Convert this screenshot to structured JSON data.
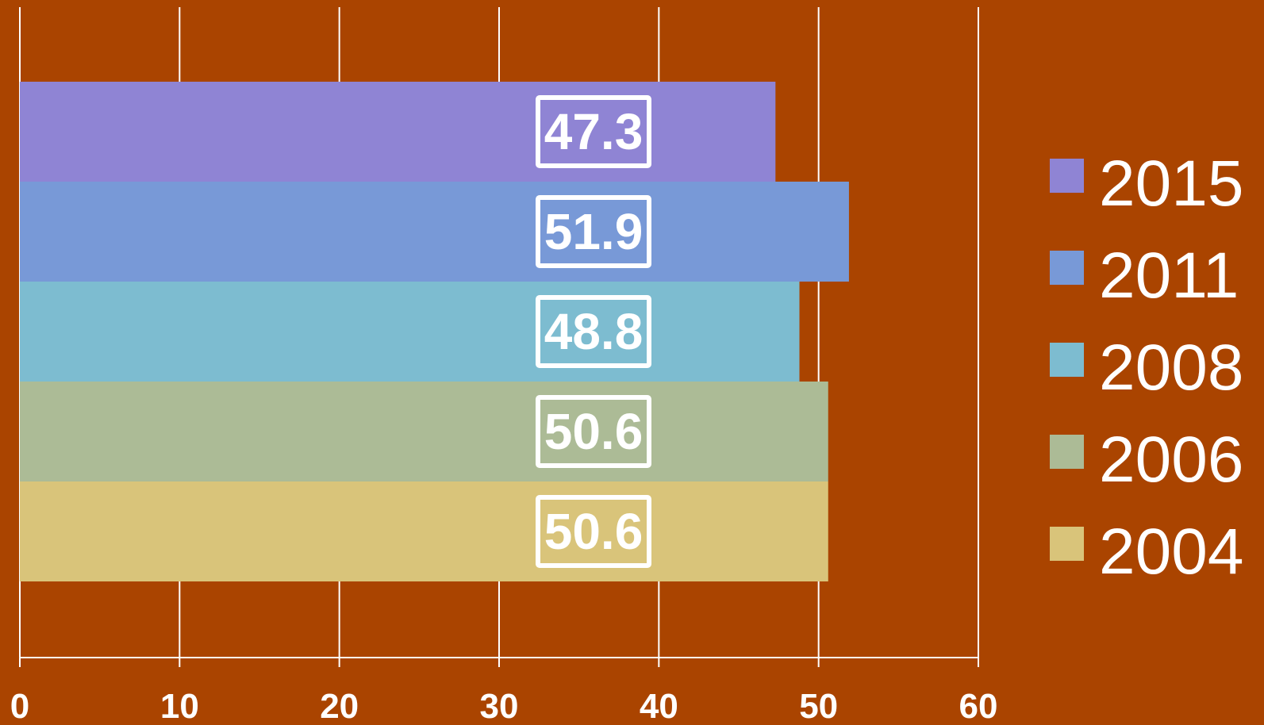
{
  "chart_data": {
    "type": "bar",
    "orientation": "horizontal",
    "grouping": "stacked-series-bands",
    "series": [
      {
        "name": "2015",
        "value": 47.3,
        "color": "#8f84d4"
      },
      {
        "name": "2011",
        "value": 51.9,
        "color": "#7899d7"
      },
      {
        "name": "2008",
        "value": 48.8,
        "color": "#7dbcd0"
      },
      {
        "name": "2006",
        "value": 50.6,
        "color": "#acbb96"
      },
      {
        "name": "2004",
        "value": 50.6,
        "color": "#d9c47a"
      }
    ],
    "data_labels": [
      "47.3",
      "51.9",
      "48.8",
      "50.6",
      "50.6"
    ],
    "x_ticks": [
      "0",
      "10",
      "20",
      "30",
      "40",
      "50",
      "60"
    ],
    "xlim": [
      0,
      60
    ],
    "grid": true,
    "legend_position": "right",
    "colors": {
      "background": "#aa4400",
      "grid": "#ffffff",
      "text": "#ffffff"
    }
  }
}
